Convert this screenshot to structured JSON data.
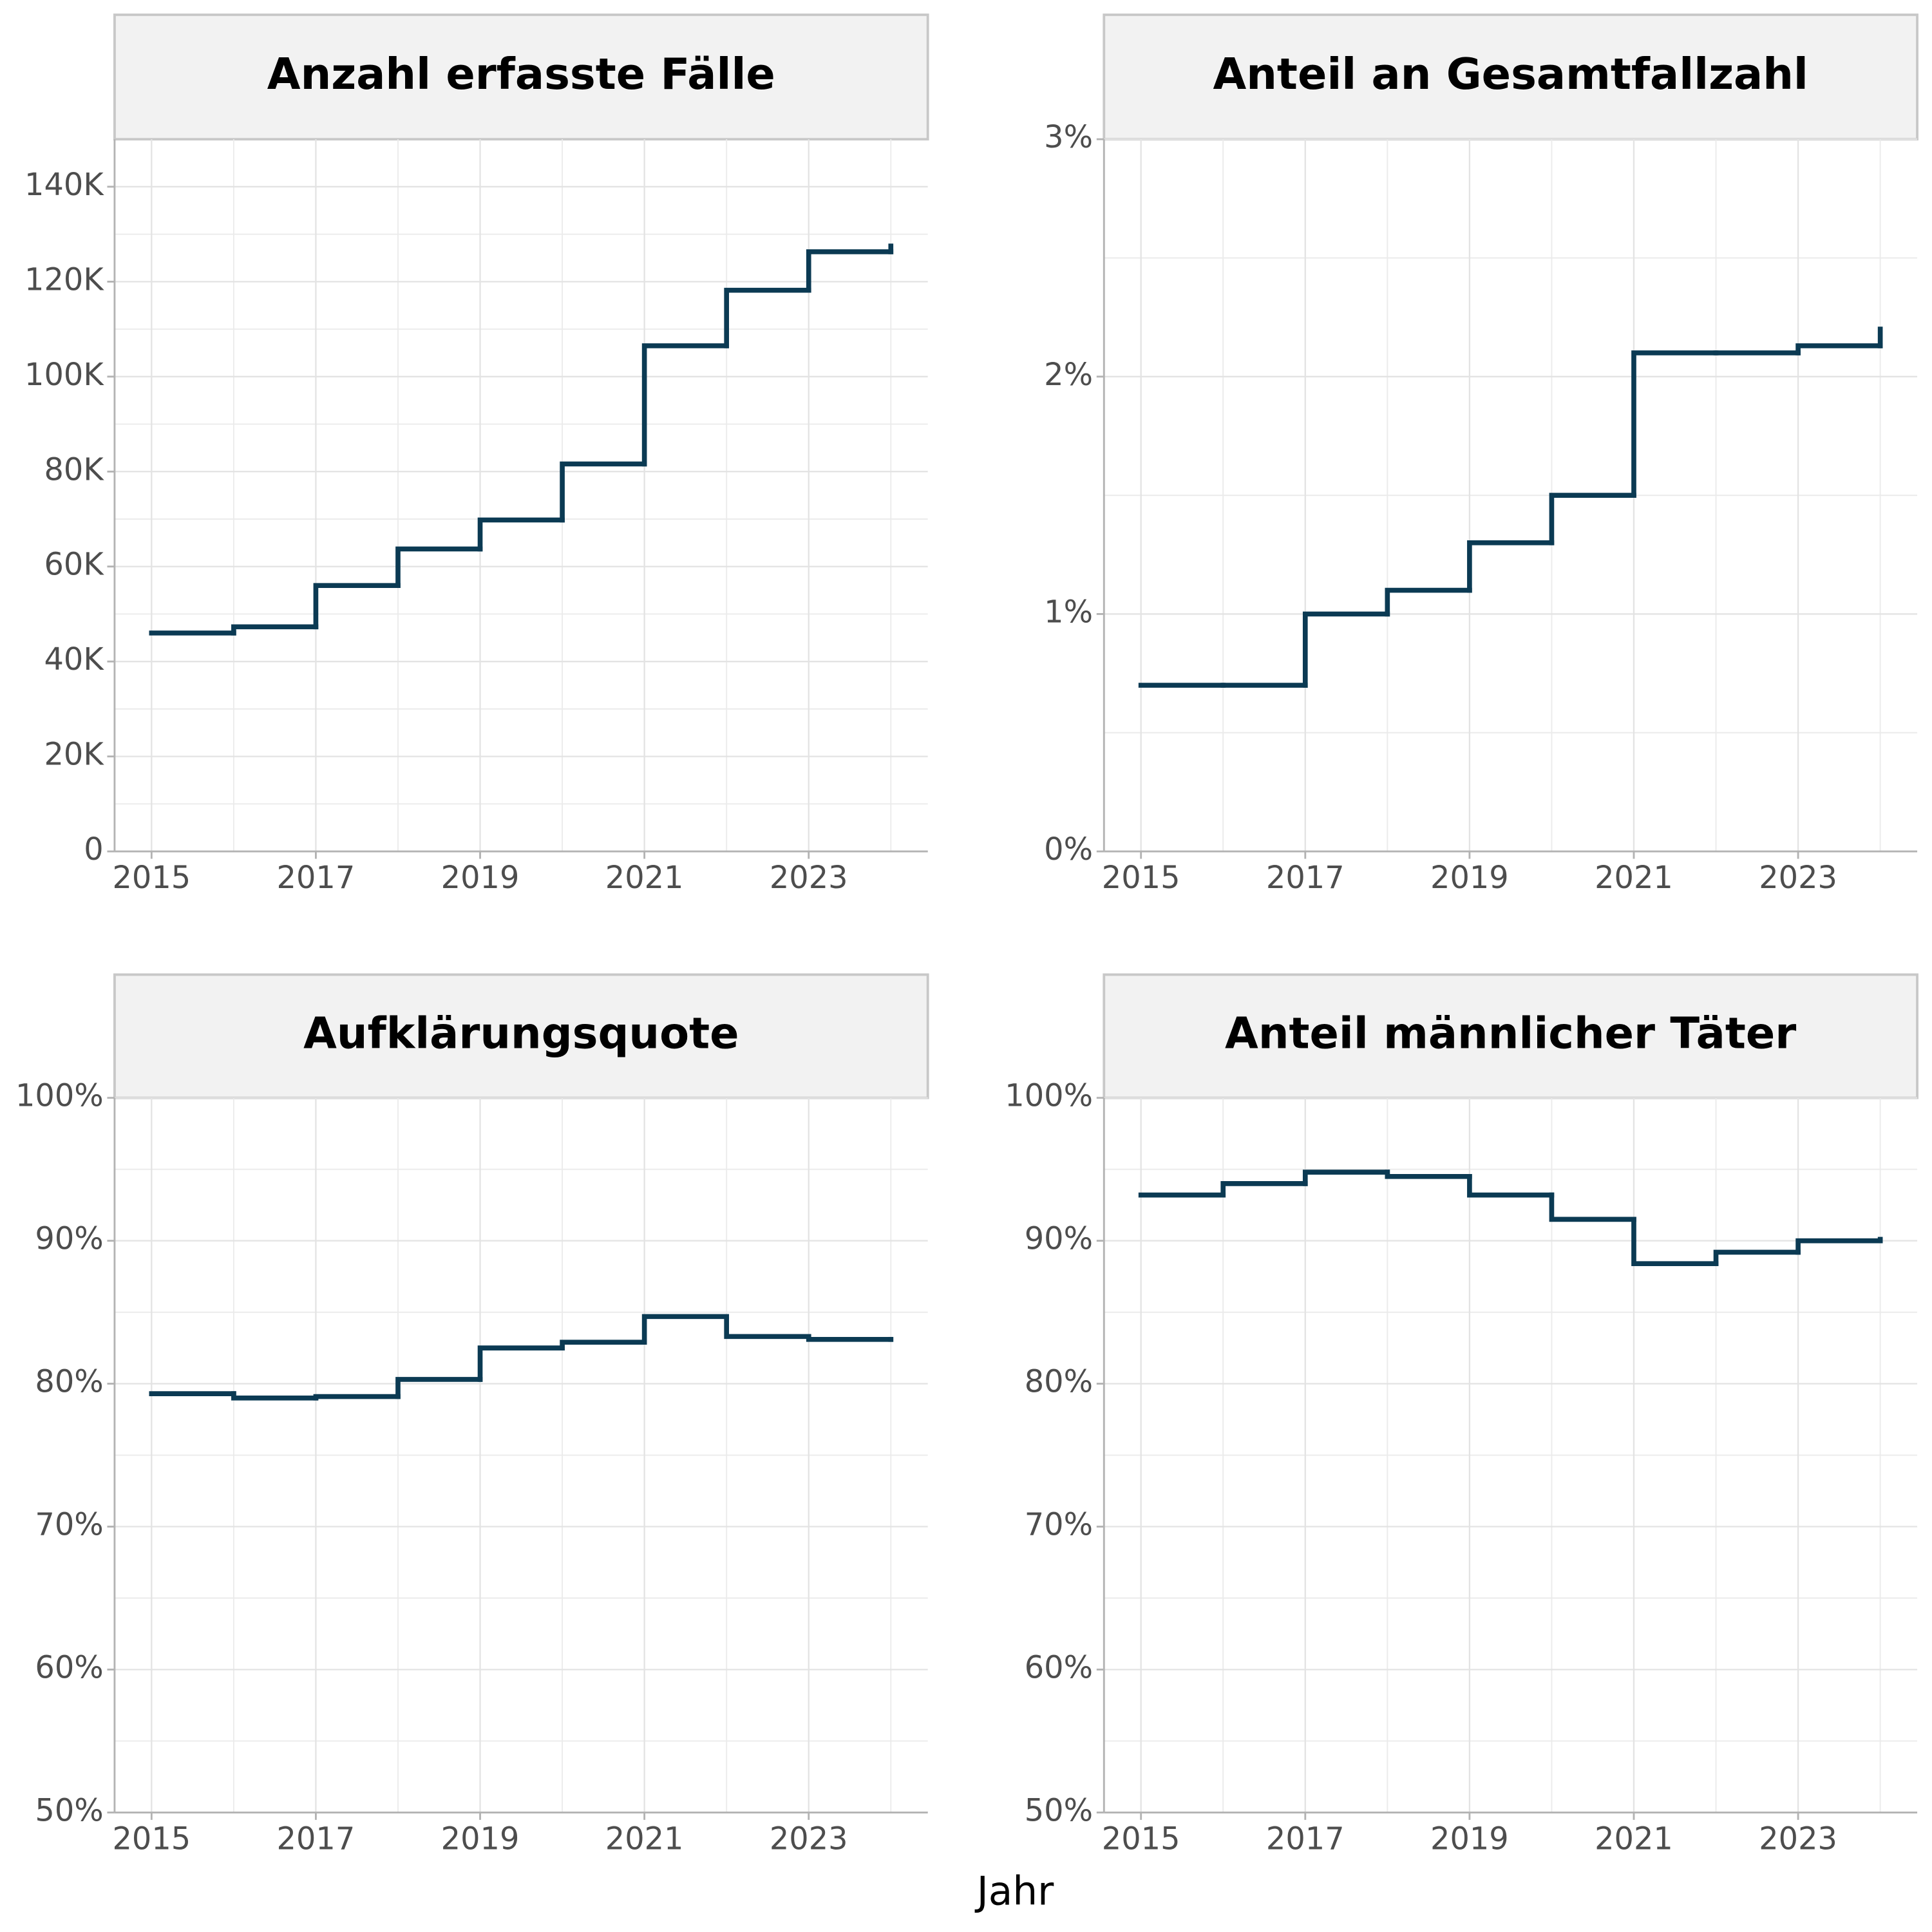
{
  "xlabel": "Jahr",
  "chart_data": [
    {
      "type": "line",
      "step": true,
      "title": "Anzahl erfasste Fälle",
      "color": "#0b3a53",
      "grid": true,
      "x": [
        2015,
        2016,
        2017,
        2018,
        2019,
        2020,
        2021,
        2022,
        2023,
        2024
      ],
      "values": [
        46000,
        47300,
        56000,
        63700,
        69800,
        81600,
        106500,
        118200,
        126300,
        127500
      ],
      "xlim": [
        2014.55,
        2024.45
      ],
      "xticks": [
        2015,
        2017,
        2019,
        2021,
        2023
      ],
      "ylim": [
        0,
        150000
      ],
      "yticks": [
        0,
        {
          "value": 20000,
          "label": "20K"
        },
        {
          "value": 40000,
          "label": "40K"
        },
        {
          "value": 60000,
          "label": "60K"
        },
        {
          "value": 80000,
          "label": "80K"
        },
        {
          "value": 100000,
          "label": "100K"
        },
        {
          "value": 120000,
          "label": "120K"
        },
        {
          "value": 140000,
          "label": "140K"
        }
      ]
    },
    {
      "type": "line",
      "step": true,
      "title": "Anteil an Gesamtfallzahl",
      "color": "#0b3a53",
      "grid": true,
      "x": [
        2015,
        2016,
        2017,
        2018,
        2019,
        2020,
        2021,
        2022,
        2023,
        2024
      ],
      "values": [
        0.7,
        0.7,
        1.0,
        1.1,
        1.3,
        1.5,
        2.1,
        2.1,
        2.13,
        2.2
      ],
      "xlim": [
        2014.55,
        2024.45
      ],
      "xticks": [
        2015,
        2017,
        2019,
        2021,
        2023
      ],
      "ylim": [
        0,
        3
      ],
      "yticks": [
        {
          "value": 0,
          "label": "0%"
        },
        {
          "value": 1,
          "label": "1%"
        },
        {
          "value": 2,
          "label": "2%"
        },
        {
          "value": 3,
          "label": "3%"
        }
      ]
    },
    {
      "type": "line",
      "step": true,
      "title": "Aufklärungsquote",
      "color": "#0b3a53",
      "grid": true,
      "x": [
        2015,
        2016,
        2017,
        2018,
        2019,
        2020,
        2021,
        2022,
        2023,
        2024
      ],
      "values": [
        79.3,
        79.0,
        79.1,
        80.3,
        82.5,
        82.9,
        84.7,
        83.3,
        83.1,
        83.1
      ],
      "xlim": [
        2014.55,
        2024.45
      ],
      "xticks": [
        2015,
        2017,
        2019,
        2021,
        2023
      ],
      "ylim": [
        50,
        100
      ],
      "yticks": [
        {
          "value": 50,
          "label": "50%"
        },
        {
          "value": 60,
          "label": "60%"
        },
        {
          "value": 70,
          "label": "70%"
        },
        {
          "value": 80,
          "label": "80%"
        },
        {
          "value": 90,
          "label": "90%"
        },
        {
          "value": 100,
          "label": "100%"
        }
      ]
    },
    {
      "type": "line",
      "step": true,
      "title": "Anteil männlicher Täter",
      "color": "#0b3a53",
      "grid": true,
      "x": [
        2015,
        2016,
        2017,
        2018,
        2019,
        2020,
        2021,
        2022,
        2023,
        2024
      ],
      "values": [
        93.2,
        94.0,
        94.8,
        94.5,
        93.2,
        91.5,
        88.4,
        89.2,
        90.0,
        90.1
      ],
      "xlim": [
        2014.55,
        2024.45
      ],
      "xticks": [
        2015,
        2017,
        2019,
        2021,
        2023
      ],
      "ylim": [
        50,
        100
      ],
      "yticks": [
        {
          "value": 50,
          "label": "50%"
        },
        {
          "value": 60,
          "label": "60%"
        },
        {
          "value": 70,
          "label": "70%"
        },
        {
          "value": 80,
          "label": "80%"
        },
        {
          "value": 90,
          "label": "90%"
        },
        {
          "value": 100,
          "label": "100%"
        }
      ]
    }
  ]
}
